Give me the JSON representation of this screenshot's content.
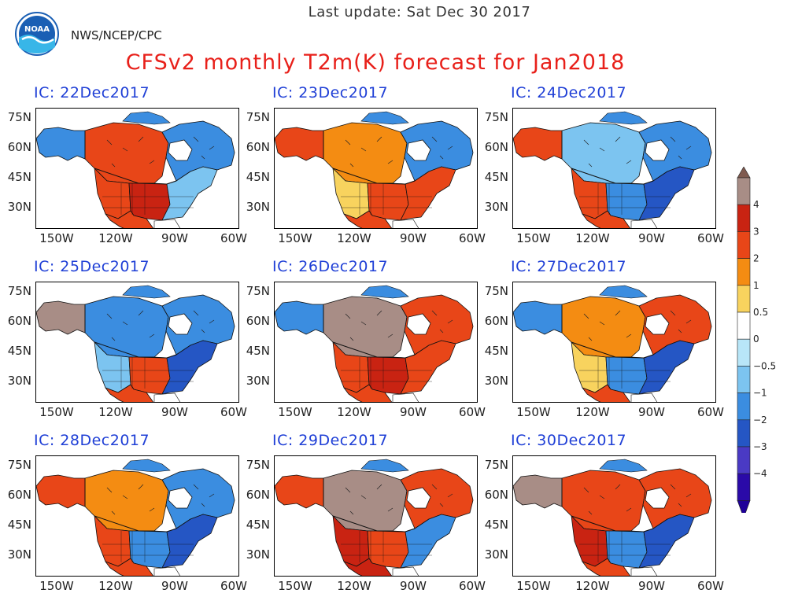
{
  "header": {
    "update": "Last update: Sat Dec 30 2017",
    "agency": "NWS/NCEP/CPC",
    "title": "CFSv2 monthly T2m(K) forecast for Jan2018",
    "logo_text": "NOAA"
  },
  "panels": [
    {
      "ic": "IC: 22Dec2017",
      "pattern": "warm-west-alaska-cold-east"
    },
    {
      "ic": "IC: 23Dec2017",
      "pattern": "warm-south-alaska-warm"
    },
    {
      "ic": "IC: 24Dec2017",
      "pattern": "cold-east-warm-southwest"
    },
    {
      "ic": "IC: 25Dec2017",
      "pattern": "cold-widespread-warm-alaska-southwest"
    },
    {
      "ic": "IC: 26Dec2017",
      "pattern": "warm-widespread-very-warm-central-canada"
    },
    {
      "ic": "IC: 27Dec2017",
      "pattern": "cold-east-warm-central-canada"
    },
    {
      "ic": "IC: 28Dec2017",
      "pattern": "warm-band-canada-cold-east"
    },
    {
      "ic": "IC: 29Dec2017",
      "pattern": "very-warm-canada-warm-west"
    },
    {
      "ic": "IC: 30Dec2017",
      "pattern": "very-warm-alaska-cold-east"
    }
  ],
  "lat_ticks": [
    "75N",
    "60N",
    "45N",
    "30N"
  ],
  "lon_ticks": [
    "150W",
    "120W",
    "90W",
    "60W"
  ],
  "colorbar": {
    "labels": [
      "4",
      "3",
      "2",
      "1",
      "0.5",
      "0",
      "−0.5",
      "−1",
      "−2",
      "−3",
      "−4"
    ],
    "colors": [
      "#a88d86",
      "#c92312",
      "#e84618",
      "#f48c12",
      "#f8d35e",
      "#ffffff",
      "#b8e6f8",
      "#7cc4f0",
      "#3b8de0",
      "#2556c4",
      "#4a3ac4",
      "#2a0aa8"
    ]
  },
  "palette": {
    "ocean": "#ffffff",
    "ice": "#ffffff",
    "border": "#000000",
    "title": "#e8201a",
    "ic": "#1f3fd6"
  }
}
